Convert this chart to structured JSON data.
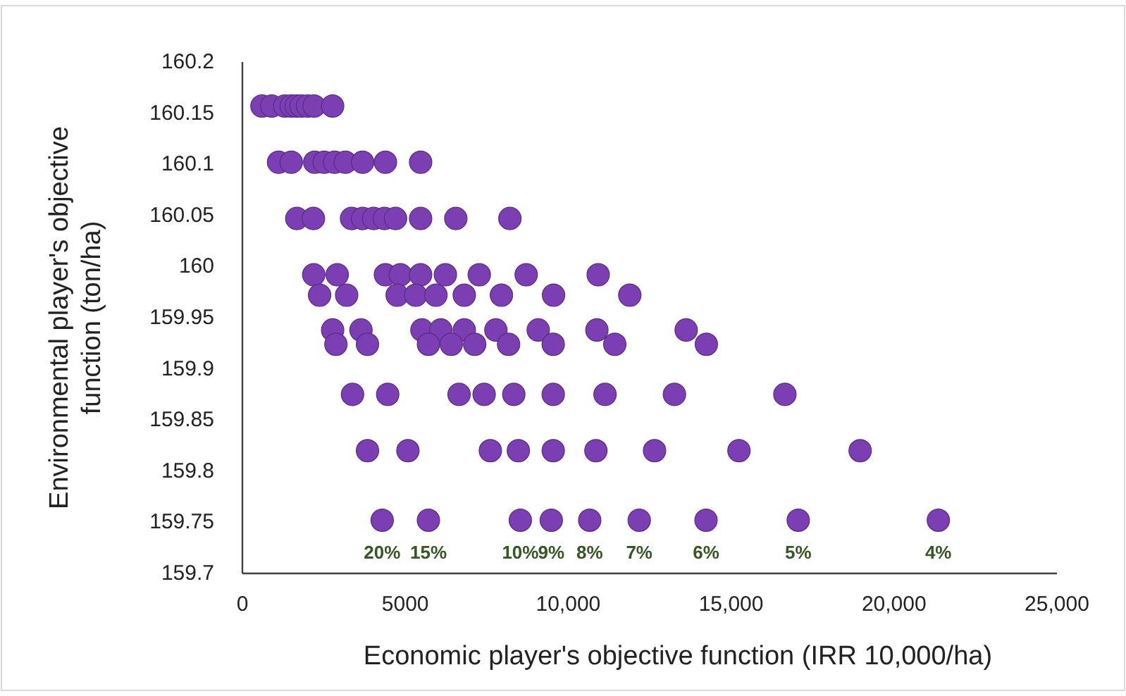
{
  "chart_data": {
    "type": "scatter",
    "xlabel": "Economic player's objective function (IRR 10,000/ha)",
    "ylabel": "Environmental player's objective function (ton/ha)",
    "xlim": [
      0,
      25000
    ],
    "xticks": [
      0,
      5000,
      {
        "value": 10000,
        "label": "10,000"
      },
      {
        "value": 15000,
        "label": "15,000"
      },
      {
        "value": 20000,
        "label": "20,000"
      },
      {
        "value": 25000,
        "label": "25,000"
      }
    ],
    "ylim": [
      159.7,
      160.2
    ],
    "yticks": [
      159.7,
      159.75,
      159.8,
      159.85,
      159.9,
      159.95,
      160,
      160.05,
      160.1,
      160.15,
      160.2
    ],
    "grid": false,
    "marker": "circle",
    "series": [
      {
        "color": "#7b3fb3",
        "x": [
          600,
          900,
          1300,
          1500,
          1650,
          1800,
          2000,
          2200,
          2770,
          1110,
          1500,
          2220,
          2510,
          2830,
          3160,
          3690,
          4390,
          5470,
          1670,
          2180,
          3350,
          3690,
          4030,
          4360,
          4700,
          5470,
          6550,
          8210,
          2190,
          2910,
          4390,
          4850,
          5470,
          6230,
          7270,
          8710,
          10920,
          2370,
          3200,
          4750,
          5320,
          5940,
          6810,
          7950,
          9550,
          11890,
          2770,
          3640,
          5510,
          6090,
          6810,
          7780,
          9080,
          10880,
          13620,
          2870,
          3840,
          5710,
          6410,
          7130,
          8170,
          9540,
          11430,
          14240,
          3380,
          4460,
          6650,
          7420,
          8330,
          9540,
          11130,
          13260,
          16650,
          3840,
          5080,
          7610,
          8470,
          9540,
          10850,
          12650,
          15240,
          18960,
          4290,
          5710,
          8530,
          9480,
          10660,
          12180,
          14230,
          17060,
          21360
        ],
        "values": [
          160.157,
          160.157,
          160.157,
          160.157,
          160.157,
          160.157,
          160.157,
          160.157,
          160.157,
          160.102,
          160.102,
          160.102,
          160.102,
          160.102,
          160.102,
          160.102,
          160.102,
          160.102,
          160.047,
          160.047,
          160.047,
          160.047,
          160.047,
          160.047,
          160.047,
          160.047,
          160.047,
          160.047,
          159.992,
          159.992,
          159.992,
          159.992,
          159.992,
          159.992,
          159.992,
          159.992,
          159.992,
          159.972,
          159.972,
          159.972,
          159.972,
          159.972,
          159.972,
          159.972,
          159.972,
          159.972,
          159.938,
          159.938,
          159.938,
          159.938,
          159.938,
          159.938,
          159.938,
          159.938,
          159.938,
          159.924,
          159.924,
          159.924,
          159.924,
          159.924,
          159.924,
          159.924,
          159.924,
          159.924,
          159.875,
          159.875,
          159.875,
          159.875,
          159.875,
          159.875,
          159.875,
          159.875,
          159.875,
          159.82,
          159.82,
          159.82,
          159.82,
          159.82,
          159.82,
          159.82,
          159.82,
          159.82,
          159.752,
          159.752,
          159.752,
          159.752,
          159.752,
          159.752,
          159.752,
          159.752,
          159.752
        ]
      }
    ],
    "annotations": [
      {
        "text": "20%",
        "x": 4290,
        "y": 159.752
      },
      {
        "text": "15%",
        "x": 5710,
        "y": 159.752
      },
      {
        "text": "10%",
        "x": 8530,
        "y": 159.752
      },
      {
        "text": "9%",
        "x": 9480,
        "y": 159.752
      },
      {
        "text": "8%",
        "x": 10660,
        "y": 159.752
      },
      {
        "text": "7%",
        "x": 12180,
        "y": 159.752
      },
      {
        "text": "6%",
        "x": 14230,
        "y": 159.752
      },
      {
        "text": "5%",
        "x": 17060,
        "y": 159.752
      },
      {
        "text": "4%",
        "x": 21360,
        "y": 159.752
      }
    ]
  }
}
